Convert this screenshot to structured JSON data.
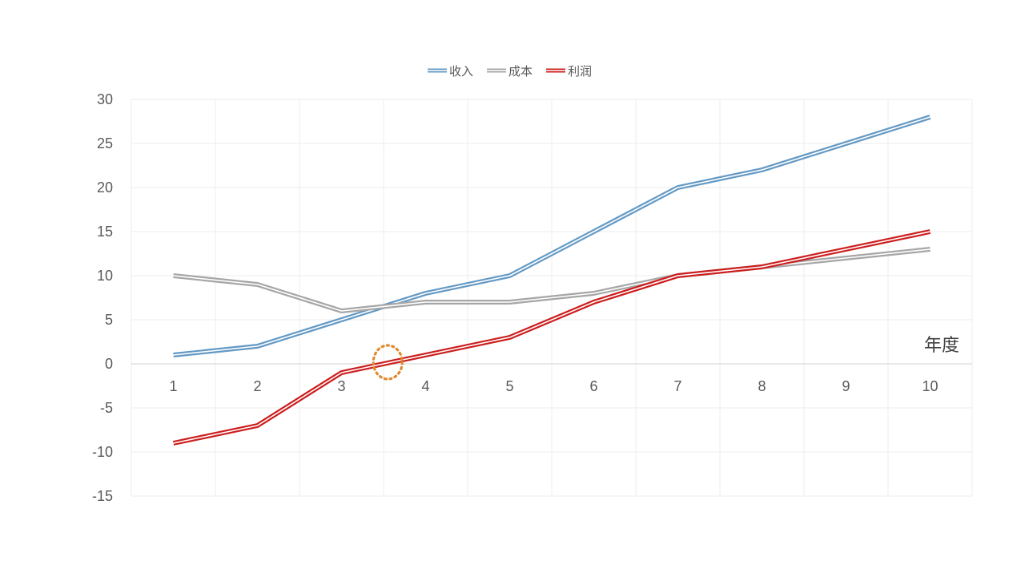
{
  "chart_data": {
    "type": "line",
    "line_style": "double",
    "x": [
      1,
      2,
      3,
      4,
      5,
      6,
      7,
      8,
      9,
      10
    ],
    "x_tick_labels": [
      "1",
      "2",
      "3",
      "4",
      "5",
      "6",
      "7",
      "8",
      "9",
      "10"
    ],
    "xlabel": "年度",
    "ylabel": "",
    "title": "",
    "ylim": [
      -15,
      30
    ],
    "y_tick_labels": [
      "30",
      "25",
      "20",
      "15",
      "10",
      "5",
      "0",
      "-5",
      "-10",
      "-15"
    ],
    "y_ticks": [
      30,
      25,
      20,
      15,
      10,
      5,
      0,
      -5,
      -10,
      -15
    ],
    "grid": true,
    "legend_position": "top-center",
    "series": [
      {
        "name": "收入",
        "color": "#6399c4",
        "values": [
          1,
          2,
          5,
          8,
          10,
          15,
          20,
          22,
          25,
          28
        ]
      },
      {
        "name": "成本",
        "color": "#a6a6a6",
        "values": [
          10,
          9,
          6,
          7,
          7,
          8,
          10,
          11,
          12,
          13
        ]
      },
      {
        "name": "利润",
        "color": "#cc1e1e",
        "values": [
          -9,
          -7,
          -1,
          1,
          3,
          7,
          10,
          11,
          13,
          15
        ]
      }
    ],
    "annotations": [
      {
        "type": "dotted-circle",
        "label": "break-even-marker",
        "color": "#e08a2e",
        "x": 3.55,
        "y": 0
      }
    ]
  }
}
